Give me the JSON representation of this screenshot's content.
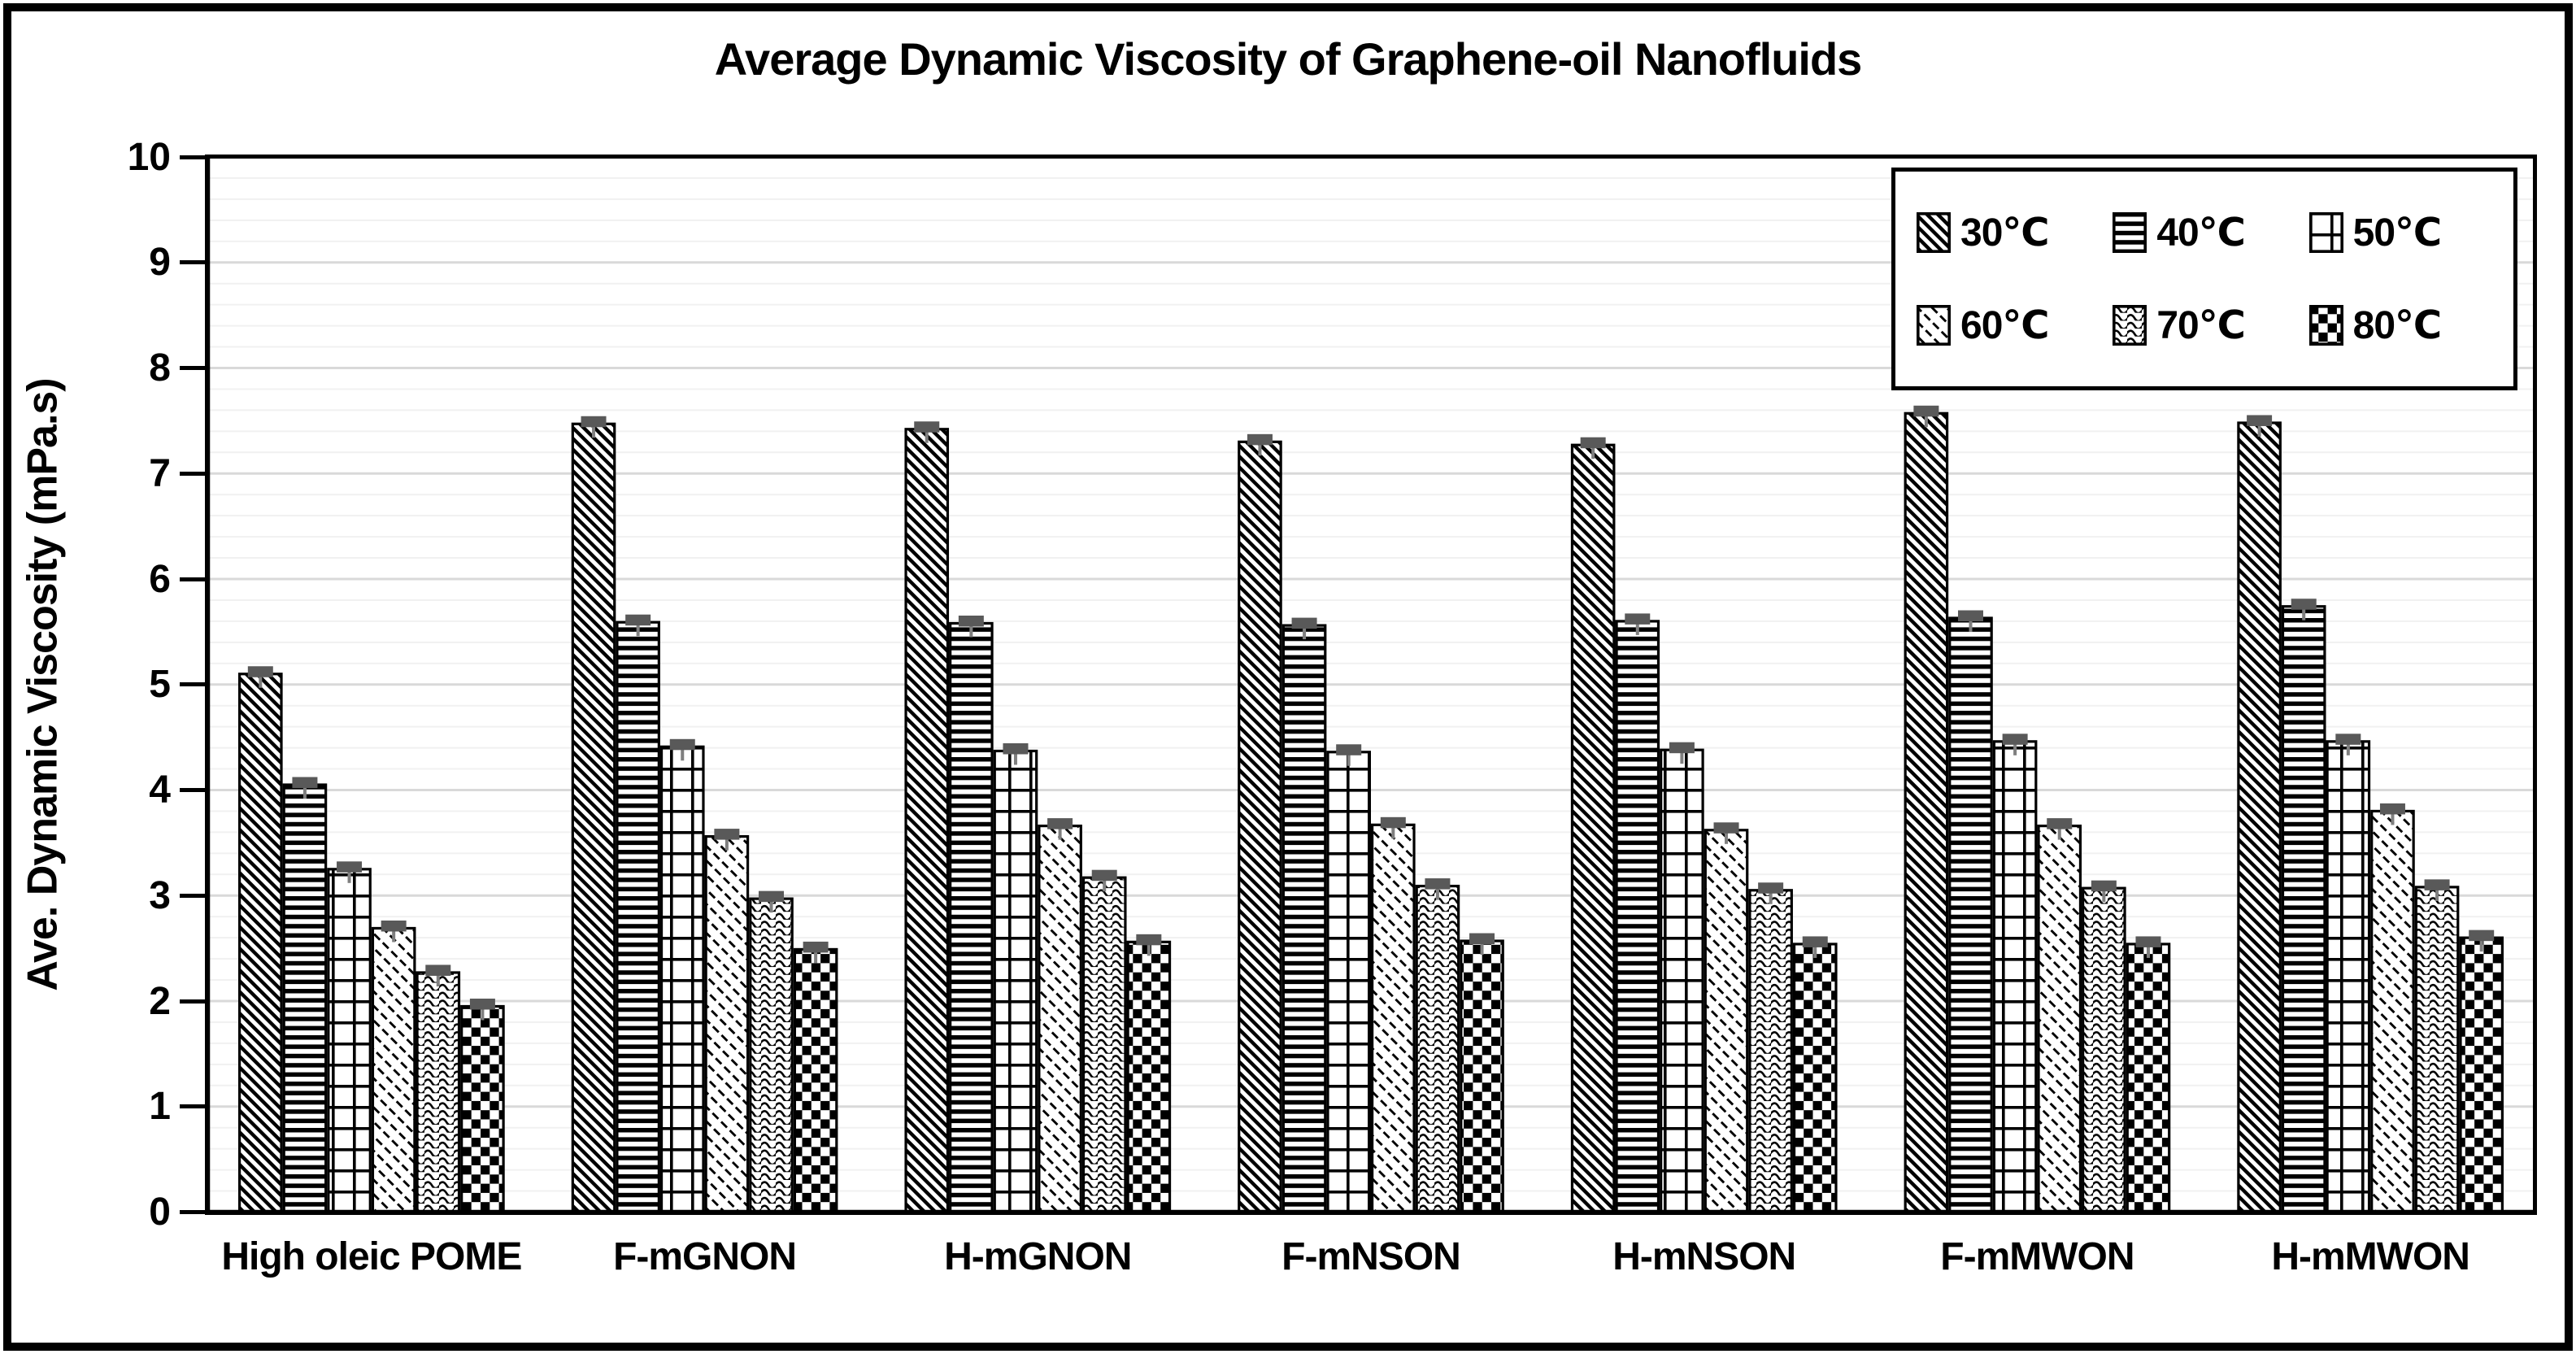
{
  "chart_data": {
    "type": "bar",
    "title": "Average Dynamic Viscosity of Graphene-oil Nanofluids",
    "xlabel": "",
    "ylabel": "Ave. Dynamic Viscosity (mPa.s)",
    "ylim": [
      0,
      10
    ],
    "y_major_tick": 1,
    "y_minor_tick": 0.2,
    "y_tick_labels": [
      "0",
      "1",
      "2",
      "3",
      "4",
      "5",
      "6",
      "7",
      "8",
      "9",
      "10"
    ],
    "grid": "horizontal gridlines: faint minor every 0.2, light-gray major every 1",
    "legend_position": "inset top-right, 2 rows x 3 columns",
    "bar_style": "white bars with black outline and black-and-white hatch fill patterns",
    "error_bars": {
      "visible": true,
      "approx_half_width": 0.05,
      "cap_color": "#595959"
    },
    "categories": [
      "High oleic POME",
      "F-mGNON",
      "H-mGNON",
      "F-mNSON",
      "H-mNSON",
      "F-mMWON",
      "H-mMWON"
    ],
    "series": [
      {
        "name": "30℃",
        "pattern": "wide-downward-diagonal",
        "values": [
          5.1,
          7.47,
          7.42,
          7.3,
          7.27,
          7.57,
          7.48
        ]
      },
      {
        "name": "40℃",
        "pattern": "horizontal-stripes",
        "values": [
          4.05,
          5.59,
          5.58,
          5.56,
          5.6,
          5.63,
          5.74
        ]
      },
      {
        "name": "50℃",
        "pattern": "large-grid",
        "values": [
          3.25,
          4.41,
          4.37,
          4.36,
          4.38,
          4.46,
          4.46
        ]
      },
      {
        "name": "60℃",
        "pattern": "dashed-downward-diagonal",
        "values": [
          2.69,
          3.56,
          3.66,
          3.67,
          3.62,
          3.66,
          3.8
        ]
      },
      {
        "name": "70℃",
        "pattern": "wave",
        "values": [
          2.27,
          2.97,
          3.17,
          3.09,
          3.05,
          3.07,
          3.08
        ]
      },
      {
        "name": "80℃",
        "pattern": "large-checkerboard",
        "values": [
          1.95,
          2.49,
          2.56,
          2.57,
          2.54,
          2.54,
          2.6
        ]
      }
    ],
    "colors": {
      "text": "#000000",
      "frame": "#000000",
      "bar_stroke": "#000000",
      "bar_fill_background": "#ffffff",
      "major_grid": "#d9d9d9",
      "minor_grid": "#f1f1f1",
      "error_cap": "#595959",
      "error_stem": "#7f7f7f"
    }
  }
}
